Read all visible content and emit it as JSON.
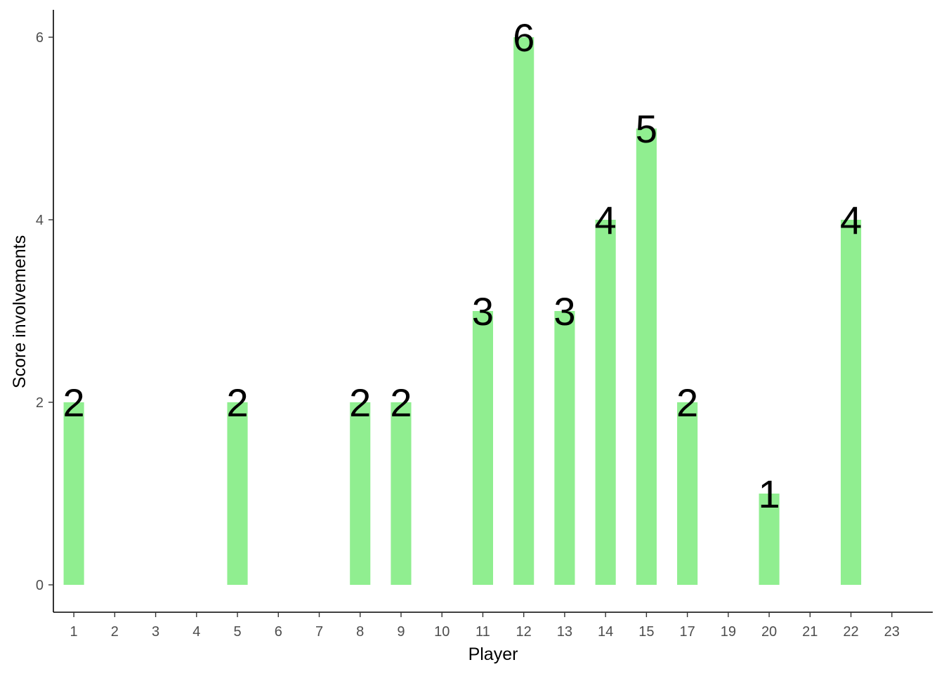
{
  "chart_data": {
    "type": "bar",
    "xlabel": "Player",
    "ylabel": "Score involvements",
    "x_ticks": [
      "1",
      "2",
      "3",
      "4",
      "5",
      "6",
      "7",
      "8",
      "9",
      "10",
      "11",
      "12",
      "13",
      "14",
      "15",
      "17",
      "19",
      "20",
      "21",
      "22",
      "23"
    ],
    "y_ticks": [
      "0",
      "2",
      "4",
      "6"
    ],
    "ylim": [
      -0.3,
      6.3
    ],
    "categories": [
      "1",
      "5",
      "8",
      "9",
      "11",
      "12",
      "13",
      "14",
      "15",
      "17",
      "20",
      "22"
    ],
    "values": [
      2,
      2,
      2,
      2,
      3,
      6,
      3,
      4,
      5,
      2,
      1,
      4
    ],
    "data_labels": [
      "2",
      "2",
      "2",
      "2",
      "3",
      "6",
      "3",
      "4",
      "5",
      "2",
      "1",
      "4"
    ],
    "bar_color": "#90EE90",
    "grid": false,
    "legend": "none"
  }
}
